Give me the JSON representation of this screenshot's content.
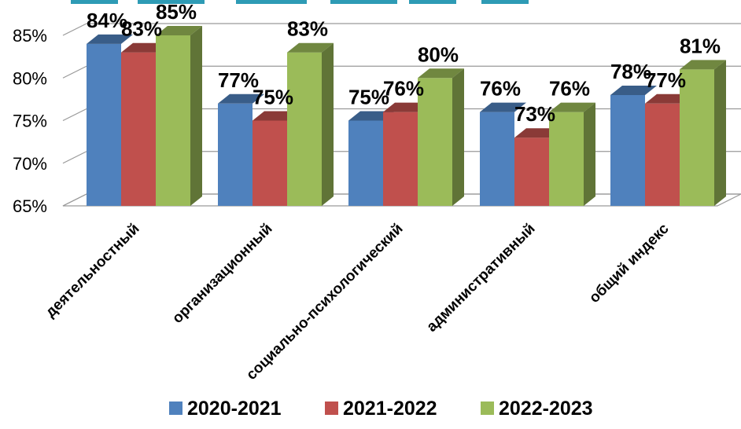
{
  "chart_data": {
    "type": "bar",
    "categories": [
      "деятельностный",
      "организационный",
      "социально-психологический",
      "административный",
      "общий индекс"
    ],
    "series": [
      {
        "name": "2020-2021",
        "color": "#4F81BD",
        "values": [
          84,
          77,
          75,
          76,
          78
        ],
        "labels": [
          "84%",
          "77%",
          "75%",
          "76%",
          "78%"
        ]
      },
      {
        "name": "2021-2022",
        "color": "#C0504D",
        "values": [
          83,
          75,
          76,
          73,
          77
        ],
        "labels": [
          "83%",
          "75%",
          "76%",
          "73%",
          "77%"
        ]
      },
      {
        "name": "2022-2023",
        "color": "#9BBB59",
        "values": [
          85,
          83,
          80,
          76,
          81
        ],
        "labels": [
          "85%",
          "83%",
          "80%",
          "76%",
          "81%"
        ]
      }
    ],
    "ylim": [
      65,
      85
    ],
    "yticks": [
      "65%",
      "70%",
      "75%",
      "80%",
      "85%"
    ],
    "ytick_values": [
      65,
      70,
      75,
      80,
      85
    ],
    "grid": true,
    "legend_position": "bottom"
  }
}
